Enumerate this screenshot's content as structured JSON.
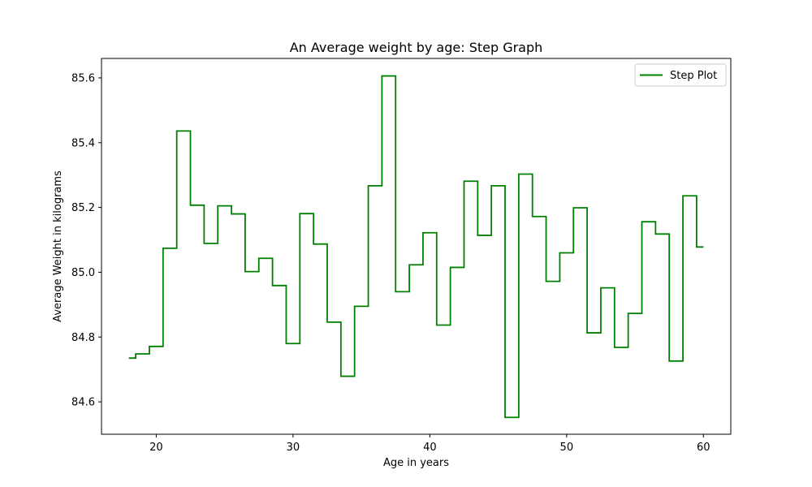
{
  "chart_data": {
    "type": "line",
    "step": "mid",
    "title": "An Average weight by age: Step Graph",
    "xlabel": "Age in years",
    "ylabel": "Average Weight in kilograms",
    "xlim": [
      16,
      62
    ],
    "ylim": [
      84.5,
      85.66
    ],
    "x_ticks": [
      20,
      30,
      40,
      50,
      60
    ],
    "y_ticks": [
      84.6,
      84.8,
      85.0,
      85.2,
      85.4,
      85.6
    ],
    "x_tick_labels": [
      "20",
      "30",
      "40",
      "50",
      "60"
    ],
    "y_tick_labels": [
      "84.6",
      "84.8",
      "85.0",
      "85.2",
      "85.4",
      "85.6"
    ],
    "grid": false,
    "legend_position": "top-right",
    "series": [
      {
        "name": "Step Plot",
        "color": "#008000",
        "x": [
          18,
          19,
          20,
          21,
          22,
          23,
          24,
          25,
          26,
          27,
          28,
          29,
          30,
          31,
          32,
          33,
          34,
          35,
          36,
          37,
          38,
          39,
          40,
          41,
          42,
          43,
          44,
          45,
          46,
          47,
          48,
          49,
          50,
          51,
          52,
          53,
          54,
          55,
          56,
          57,
          58,
          59,
          60
        ],
        "y": [
          84.735,
          84.748,
          84.771,
          85.074,
          85.436,
          85.207,
          85.089,
          85.205,
          85.18,
          85.002,
          85.043,
          84.959,
          84.78,
          85.181,
          85.087,
          84.846,
          84.679,
          84.895,
          85.267,
          85.606,
          84.94,
          85.023,
          85.122,
          84.837,
          85.015,
          85.281,
          85.114,
          85.267,
          84.552,
          85.303,
          85.172,
          84.972,
          85.06,
          85.199,
          84.813,
          84.952,
          84.768,
          84.873,
          85.156,
          85.118,
          84.726,
          85.236,
          85.078
        ]
      }
    ]
  }
}
